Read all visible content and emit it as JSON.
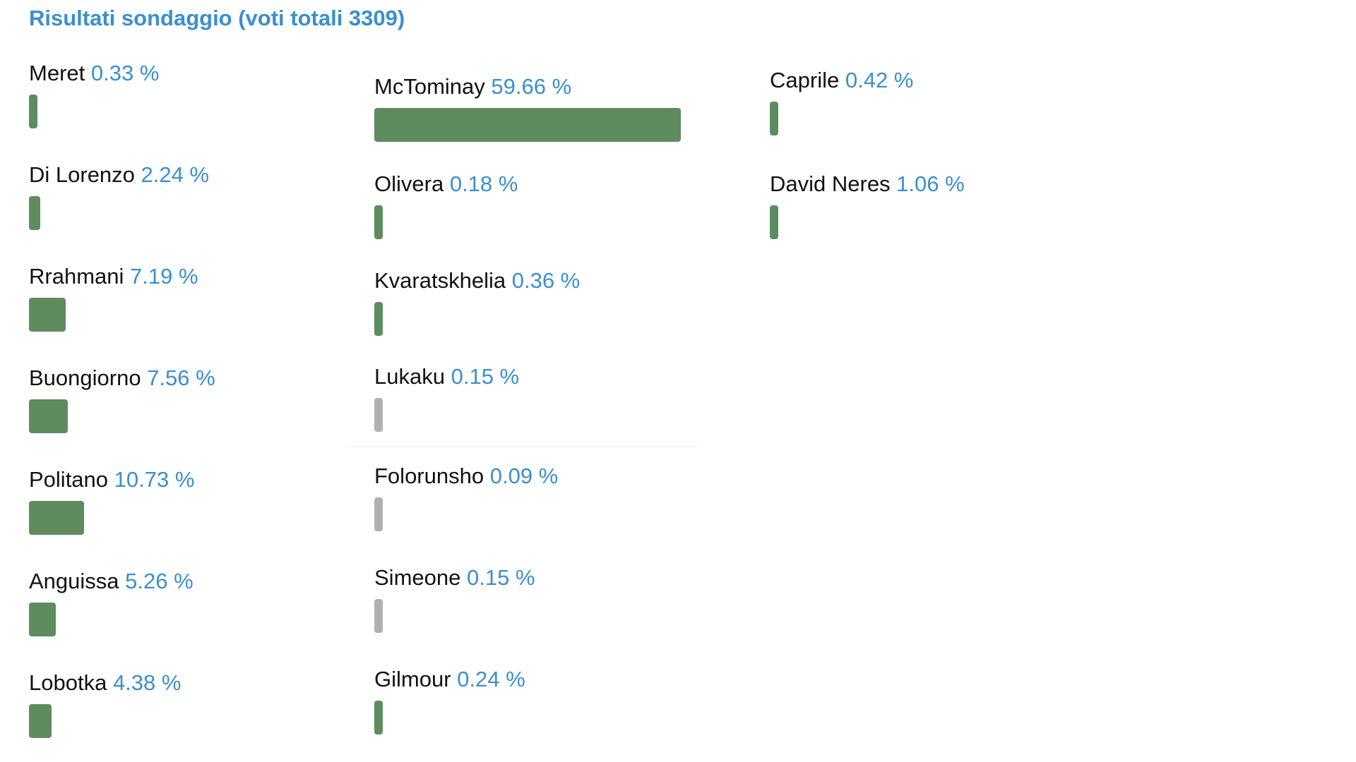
{
  "title": "Risultati sondaggio (voti totali 3309)",
  "colors": {
    "title": "#3a8fcf",
    "percentage": "#3a8fcf",
    "bar_default": "#5e8c5f",
    "bar_gray": "#b0b0b0"
  },
  "players": [
    {
      "name": "Meret",
      "percent": 0.33,
      "percent_label": "0.33 %",
      "bar_color": "#5e8c5f"
    },
    {
      "name": "Di Lorenzo",
      "percent": 2.24,
      "percent_label": "2.24 %",
      "bar_color": "#5e8c5f"
    },
    {
      "name": "Rrahmani",
      "percent": 7.19,
      "percent_label": "7.19 %",
      "bar_color": "#5e8c5f"
    },
    {
      "name": "Buongiorno",
      "percent": 7.56,
      "percent_label": "7.56 %",
      "bar_color": "#5e8c5f"
    },
    {
      "name": "Politano",
      "percent": 10.73,
      "percent_label": "10.73 %",
      "bar_color": "#5e8c5f"
    },
    {
      "name": "Anguissa",
      "percent": 5.26,
      "percent_label": "5.26 %",
      "bar_color": "#5e8c5f"
    },
    {
      "name": "Lobotka",
      "percent": 4.38,
      "percent_label": "4.38 %",
      "bar_color": "#5e8c5f"
    },
    {
      "name": "McTominay",
      "percent": 59.66,
      "percent_label": "59.66 %",
      "bar_color": "#5e8c5f"
    },
    {
      "name": "Olivera",
      "percent": 0.18,
      "percent_label": "0.18 %",
      "bar_color": "#5e8c5f"
    },
    {
      "name": "Kvaratskhelia",
      "percent": 0.36,
      "percent_label": "0.36 %",
      "bar_color": "#5e8c5f"
    },
    {
      "name": "Lukaku",
      "percent": 0.15,
      "percent_label": "0.15 %",
      "bar_color": "#b0b0b0"
    },
    {
      "name": "Folorunsho",
      "percent": 0.09,
      "percent_label": "0.09 %",
      "bar_color": "#b0b0b0"
    },
    {
      "name": "Simeone",
      "percent": 0.15,
      "percent_label": "0.15 %",
      "bar_color": "#b0b0b0"
    },
    {
      "name": "Gilmour",
      "percent": 0.24,
      "percent_label": "0.24 %",
      "bar_color": "#5e8c5f"
    },
    {
      "name": "Caprile",
      "percent": 0.42,
      "percent_label": "0.42 %",
      "bar_color": "#5e8c5f"
    },
    {
      "name": "David Neres",
      "percent": 1.06,
      "percent_label": "1.06 %",
      "bar_color": "#5e8c5f"
    }
  ]
}
